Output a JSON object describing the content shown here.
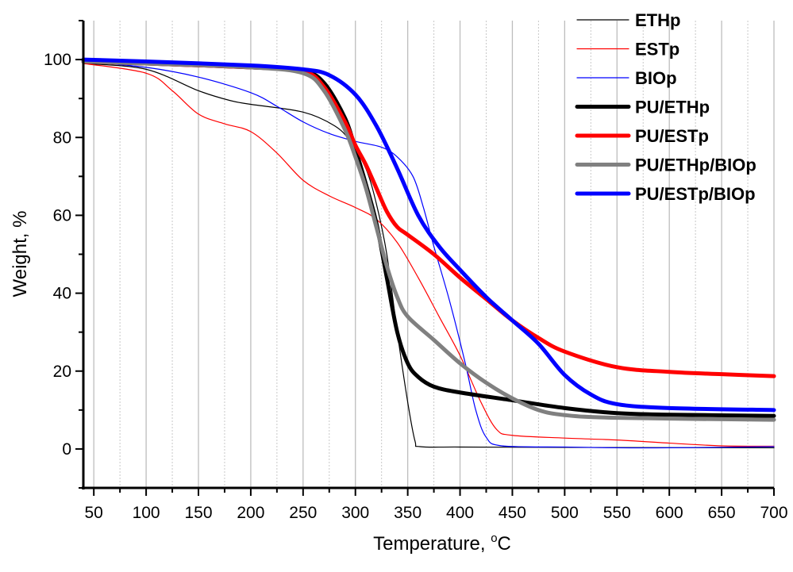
{
  "chart_data": {
    "type": "line",
    "title": "",
    "xlabel": {
      "text": "Temperature, ",
      "sup": "o",
      "unit": "C"
    },
    "ylabel": "Weight, %",
    "xlim": [
      40,
      700
    ],
    "ylim": [
      -10,
      110
    ],
    "xticks": [
      50,
      100,
      150,
      200,
      250,
      300,
      350,
      400,
      450,
      500,
      550,
      600,
      650,
      700
    ],
    "yticks": [
      0,
      20,
      40,
      60,
      80,
      100
    ],
    "grid": "vertical gridlines (solid at major, dotted at minor)",
    "legend_placement": "top-right",
    "series": [
      {
        "name": "ETHp",
        "color": "#000000",
        "style": "thin",
        "points": [
          [
            40,
            99
          ],
          [
            100,
            97.5
          ],
          [
            150,
            92
          ],
          [
            180,
            89.5
          ],
          [
            200,
            88.5
          ],
          [
            250,
            86.5
          ],
          [
            280,
            83
          ],
          [
            295,
            79
          ],
          [
            310,
            72
          ],
          [
            320,
            63
          ],
          [
            330,
            50
          ],
          [
            340,
            30
          ],
          [
            350,
            12
          ],
          [
            357,
            2
          ],
          [
            362,
            0.6
          ],
          [
            400,
            0.5
          ],
          [
            500,
            0.4
          ],
          [
            700,
            0.3
          ]
        ]
      },
      {
        "name": "ESTp",
        "color": "#ff0000",
        "style": "thin",
        "points": [
          [
            40,
            99
          ],
          [
            100,
            96.5
          ],
          [
            125,
            92
          ],
          [
            150,
            86
          ],
          [
            175,
            83.5
          ],
          [
            200,
            81.5
          ],
          [
            225,
            76
          ],
          [
            250,
            69
          ],
          [
            275,
            65
          ],
          [
            300,
            62
          ],
          [
            320,
            59
          ],
          [
            340,
            53
          ],
          [
            360,
            44
          ],
          [
            380,
            34
          ],
          [
            400,
            24
          ],
          [
            420,
            12
          ],
          [
            435,
            5
          ],
          [
            450,
            3.5
          ],
          [
            500,
            2.8
          ],
          [
            550,
            2.3
          ],
          [
            600,
            1.5
          ],
          [
            650,
            0.8
          ],
          [
            700,
            0.7
          ]
        ]
      },
      {
        "name": "BIOp",
        "color": "#0000ff",
        "style": "thin",
        "points": [
          [
            40,
            99.5
          ],
          [
            100,
            98
          ],
          [
            150,
            95.5
          ],
          [
            200,
            91.5
          ],
          [
            225,
            88
          ],
          [
            250,
            84
          ],
          [
            275,
            81
          ],
          [
            300,
            79
          ],
          [
            325,
            77.5
          ],
          [
            340,
            75
          ],
          [
            355,
            70
          ],
          [
            365,
            62
          ],
          [
            375,
            52
          ],
          [
            390,
            38
          ],
          [
            405,
            22
          ],
          [
            415,
            10
          ],
          [
            425,
            3
          ],
          [
            440,
            0.8
          ],
          [
            500,
            0.5
          ],
          [
            550,
            0.3
          ],
          [
            600,
            0.3
          ],
          [
            700,
            0.6
          ]
        ]
      },
      {
        "name": "PU/ETHp",
        "color": "#000000",
        "style": "thick",
        "points": [
          [
            40,
            99.5
          ],
          [
            100,
            99
          ],
          [
            200,
            98
          ],
          [
            250,
            97
          ],
          [
            270,
            94
          ],
          [
            290,
            85
          ],
          [
            300,
            77
          ],
          [
            310,
            68
          ],
          [
            320,
            58
          ],
          [
            330,
            44
          ],
          [
            340,
            30
          ],
          [
            350,
            22
          ],
          [
            360,
            18.5
          ],
          [
            375,
            16
          ],
          [
            400,
            14.5
          ],
          [
            450,
            12.5
          ],
          [
            500,
            10.5
          ],
          [
            550,
            9.2
          ],
          [
            600,
            8.8
          ],
          [
            700,
            8.5
          ]
        ]
      },
      {
        "name": "PU/ESTp",
        "color": "#ff0000",
        "style": "thick",
        "points": [
          [
            40,
            99.5
          ],
          [
            100,
            99
          ],
          [
            200,
            98
          ],
          [
            250,
            97
          ],
          [
            270,
            93
          ],
          [
            290,
            84
          ],
          [
            300,
            78
          ],
          [
            310,
            73
          ],
          [
            320,
            67
          ],
          [
            330,
            61
          ],
          [
            340,
            57
          ],
          [
            350,
            55
          ],
          [
            375,
            50
          ],
          [
            400,
            44
          ],
          [
            425,
            38.5
          ],
          [
            450,
            33
          ],
          [
            475,
            28.5
          ],
          [
            500,
            25
          ],
          [
            550,
            21
          ],
          [
            600,
            19.8
          ],
          [
            650,
            19.2
          ],
          [
            700,
            18.7
          ]
        ]
      },
      {
        "name": "PU/ETHp/BIOp",
        "color": "#808080",
        "style": "thick",
        "points": [
          [
            40,
            99.5
          ],
          [
            100,
            99
          ],
          [
            200,
            98
          ],
          [
            250,
            96.5
          ],
          [
            270,
            92
          ],
          [
            290,
            82
          ],
          [
            300,
            75
          ],
          [
            310,
            67
          ],
          [
            320,
            57
          ],
          [
            330,
            47
          ],
          [
            340,
            39
          ],
          [
            350,
            34
          ],
          [
            375,
            28
          ],
          [
            400,
            22
          ],
          [
            425,
            17
          ],
          [
            450,
            13
          ],
          [
            475,
            10
          ],
          [
            500,
            8.7
          ],
          [
            550,
            8
          ],
          [
            700,
            7.5
          ]
        ]
      },
      {
        "name": "PU/ESTp/BIOp",
        "color": "#0000ff",
        "style": "thick",
        "points": [
          [
            40,
            100
          ],
          [
            100,
            99.5
          ],
          [
            200,
            98.5
          ],
          [
            250,
            97.5
          ],
          [
            275,
            96
          ],
          [
            300,
            91
          ],
          [
            320,
            83
          ],
          [
            340,
            72
          ],
          [
            360,
            60
          ],
          [
            380,
            52
          ],
          [
            400,
            46
          ],
          [
            425,
            39
          ],
          [
            450,
            33
          ],
          [
            475,
            27
          ],
          [
            500,
            19
          ],
          [
            525,
            14
          ],
          [
            550,
            11.5
          ],
          [
            600,
            10.5
          ],
          [
            700,
            10
          ]
        ]
      }
    ]
  }
}
